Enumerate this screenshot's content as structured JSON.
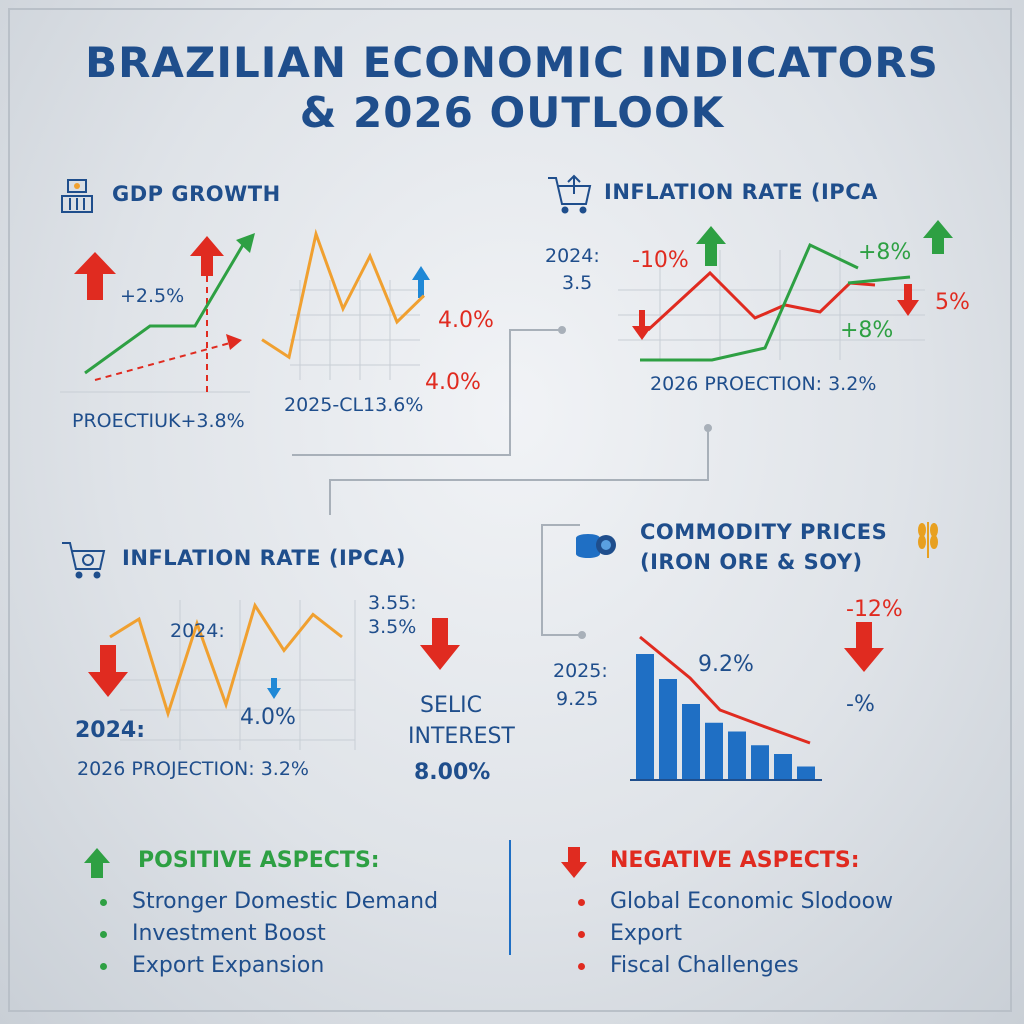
{
  "title_line1": "BRAZILIAN ECONOMIC INDICATORS",
  "title_line2": "& 2026 OUTLOOK",
  "gdp": {
    "heading": "GDP GROWTH",
    "growth_label": "+2.5%",
    "projection_label": "PROECTI",
    "projection_overlap": "​UK",
    "projection_value": "+3.8%",
    "value_40a": "4.0%",
    "value_40b": "4.0%",
    "year_label": "2025-CL13.6%",
    "chart_data": {
      "type": "line",
      "series": [
        {
          "values": [
            1.0,
            2.0,
            2.0,
            3.8
          ]
        },
        {
          "values": [
            1.6,
            1.2,
            4.0,
            2.3,
            3.5,
            2.0,
            2.6
          ]
        }
      ]
    }
  },
  "inflation_top": {
    "heading": "INFLATION RATE (IPCA",
    "label_2024": "2024:",
    "value_2024": "3.5",
    "minus10": "-10%",
    "plus8a": "+8%",
    "plus8b": "+8%",
    "five": "5%",
    "projection": "2026 PROECTION: 3.2%"
  },
  "inflation_bottom": {
    "heading": "INFLATION RATE (IPCA)",
    "label_2024_mid": "2024:",
    "value_40": "4.0%",
    "label_2024": "2024:",
    "projection": "2026 PROJECTION: 3.2%",
    "val_355": "3.55:",
    "val_35": "3.5%",
    "selic_line1": "SELIC",
    "selic_line2": "INTEREST",
    "selic_value": "8.00%",
    "chart_data": {
      "type": "line",
      "series": [
        {
          "values": [
            3.8,
            4.2,
            2.1,
            4.1,
            2.3,
            4.5,
            3.5,
            4.3,
            3.8
          ]
        }
      ]
    }
  },
  "commodities": {
    "heading_line1": "COMMODITY PRICES",
    "heading_line2": "(IRON ORE & SOY)",
    "label_2025": "2025:",
    "value_2025": "9.25",
    "value_92": "9.2%",
    "minus12": "-12%",
    "minus_pct": "-%",
    "chart_data": {
      "type": "bar",
      "values": [
        10,
        8,
        6,
        4.5,
        3.8,
        2.7,
        2,
        1
      ]
    }
  },
  "positive": {
    "heading": "POSITIVE ASPECTS:",
    "items": [
      "Stronger Domestic Demand",
      "Investment Boost",
      "Export Expansion"
    ]
  },
  "negative": {
    "heading": "NEGATIVE ASPECTS:",
    "items": [
      "Global Economic Slodoow",
      "Export",
      "Fiscal Challenges"
    ]
  },
  "colors": {
    "blue": "#1f4e8c",
    "red": "#e02b20",
    "green": "#2ea043",
    "orange": "#f0a030",
    "bar": "#1f6fc4"
  }
}
